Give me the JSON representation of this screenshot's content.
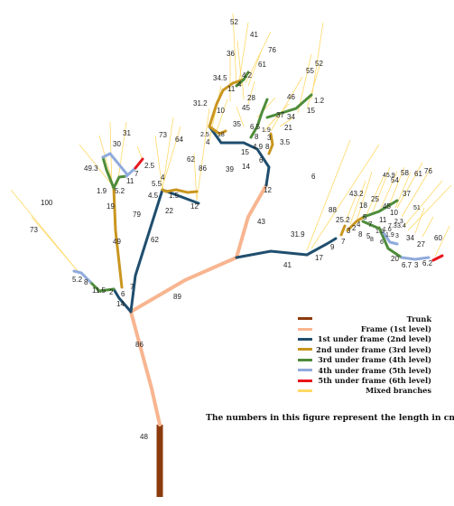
{
  "legend": {
    "items": [
      {
        "label": "Trunk",
        "color": "#8B3A0E"
      },
      {
        "label": "Frame (1st level)",
        "color": "#F8B590"
      },
      {
        "label": "1st under frame (2nd level)",
        "color": "#1F4E6E"
      },
      {
        "label": "2nd under frame (3rd level)",
        "color": "#C9961E"
      },
      {
        "label": "3rd under frame (4th level)",
        "color": "#4E8C3A"
      },
      {
        "label": "4th under frame (5th level)",
        "color": "#8FAADC"
      },
      {
        "label": "5th under frame (6th level)",
        "color": "#E8151B"
      },
      {
        "label": "Mixed branches",
        "color": "#FFD966"
      }
    ]
  },
  "note": "The numbers in this figure represent the length in cm",
  "labels": [
    "48",
    "86",
    "89",
    "14",
    "6",
    "7",
    "2",
    "11.5",
    "8",
    "5.2",
    "73",
    "100",
    "49",
    "79",
    "62",
    "19",
    "5.2",
    "1.9",
    "11",
    "7",
    "2.5",
    "49.3",
    "30",
    "31",
    "22",
    "12",
    "4.5",
    "1.5",
    "5.5",
    "4",
    "73",
    "64",
    "62",
    "86",
    "31.2",
    "43",
    "12",
    "39",
    "14",
    "6",
    "15",
    "4.9",
    "8",
    "2.5",
    "18",
    "4",
    "10",
    "34.5",
    "11",
    "4.2",
    "4",
    "45",
    "28",
    "35",
    "8",
    "3",
    "3.5",
    "6.5",
    "1.9",
    "21",
    "37",
    "34",
    "15",
    "1.2",
    "46",
    "55",
    "52",
    "61",
    "76",
    "41",
    "52",
    "36",
    "6",
    "41",
    "17",
    "9",
    "7",
    "31.9",
    "88",
    "25.2",
    "43.2",
    "18",
    "5",
    "8",
    "5",
    "2",
    "3",
    "4",
    "7",
    "11",
    "25",
    "45",
    "54",
    "61",
    "76",
    "58",
    "10",
    "37",
    "51",
    "34",
    "27",
    "60",
    "6.7",
    "3",
    "6.2",
    "20",
    "8",
    "6",
    "1.9",
    "3",
    "7.3",
    "1.6",
    "1.3",
    "3.4",
    "2.3",
    "45.9"
  ]
}
